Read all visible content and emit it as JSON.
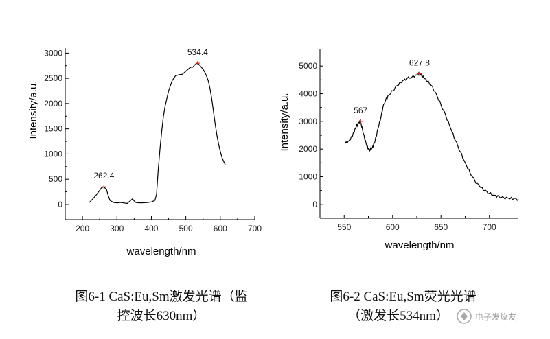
{
  "chart_data": [
    {
      "type": "line",
      "xlabel": "wavelength/nm",
      "ylabel": "Intensity/a.u.",
      "xlim": [
        150,
        700
      ],
      "ylim": [
        -300,
        3100
      ],
      "xticks": [
        200,
        300,
        400,
        500,
        600,
        700
      ],
      "yticks": [
        0,
        500,
        1000,
        1500,
        2000,
        2500,
        3000
      ],
      "x": [
        220,
        230,
        240,
        250,
        255,
        262.4,
        270,
        275,
        280,
        290,
        300,
        310,
        320,
        330,
        340,
        345,
        350,
        355,
        360,
        370,
        380,
        390,
        400,
        410,
        415,
        420,
        425,
        430,
        435,
        440,
        445,
        450,
        455,
        460,
        470,
        480,
        490,
        500,
        510,
        515,
        520,
        525,
        530,
        534.4,
        540,
        545,
        550,
        555,
        560,
        565,
        570,
        575,
        580,
        585,
        590,
        595,
        600,
        605,
        610,
        615
      ],
      "y": [
        40,
        110,
        190,
        280,
        330,
        350,
        290,
        170,
        80,
        40,
        30,
        40,
        30,
        20,
        80,
        110,
        70,
        40,
        35,
        30,
        35,
        40,
        50,
        80,
        200,
        700,
        1100,
        1450,
        1750,
        1950,
        2100,
        2250,
        2350,
        2450,
        2550,
        2570,
        2580,
        2640,
        2700,
        2720,
        2720,
        2760,
        2790,
        2800,
        2760,
        2720,
        2680,
        2620,
        2550,
        2450,
        2300,
        2100,
        1850,
        1600,
        1380,
        1200,
        1050,
        930,
        850,
        780
      ],
      "peaks": [
        {
          "label": "262.4",
          "x": 262.4,
          "y": 350
        },
        {
          "label": "534.4",
          "x": 534.4,
          "y": 2800
        }
      ],
      "caption_line1": "图6-1 CaS:Eu,Sm激发光谱（监",
      "caption_line2": "控波长630nm）"
    },
    {
      "type": "line",
      "xlabel": "wavelength/nm",
      "ylabel": "Intensity/a.u.",
      "xlim": [
        525,
        730
      ],
      "ylim": [
        -500,
        5600
      ],
      "xticks": [
        550,
        600,
        650,
        700
      ],
      "yticks": [
        0,
        1000,
        2000,
        3000,
        4000,
        5000
      ],
      "x": [
        551,
        555,
        558,
        560,
        562,
        564,
        566,
        567,
        569,
        571,
        573,
        575,
        577,
        579,
        581,
        583,
        585,
        588,
        590,
        593,
        596,
        600,
        605,
        610,
        615,
        620,
        625,
        627.8,
        630,
        633,
        636,
        640,
        645,
        650,
        655,
        660,
        665,
        670,
        675,
        680,
        685,
        690,
        695,
        700,
        705,
        710,
        715,
        720,
        725,
        730
      ],
      "y": [
        2200,
        2300,
        2450,
        2600,
        2780,
        2900,
        3000,
        2980,
        2700,
        2400,
        2150,
        2000,
        1980,
        2050,
        2200,
        2450,
        2750,
        3150,
        3500,
        3800,
        3950,
        4100,
        4300,
        4450,
        4550,
        4600,
        4680,
        4720,
        4650,
        4550,
        4450,
        4300,
        4000,
        3600,
        3200,
        2750,
        2300,
        1900,
        1500,
        1150,
        850,
        650,
        500,
        400,
        330,
        280,
        240,
        220,
        200,
        190
      ],
      "peaks": [
        {
          "label": "567",
          "x": 567,
          "y": 3000
        },
        {
          "label": "627.8",
          "x": 627.8,
          "y": 4720
        }
      ],
      "caption_line1": "图6-2 CaS:Eu,Sm荧光光谱",
      "caption_line2": "（激发长534nm）"
    }
  ],
  "watermark": "电子发烧友"
}
